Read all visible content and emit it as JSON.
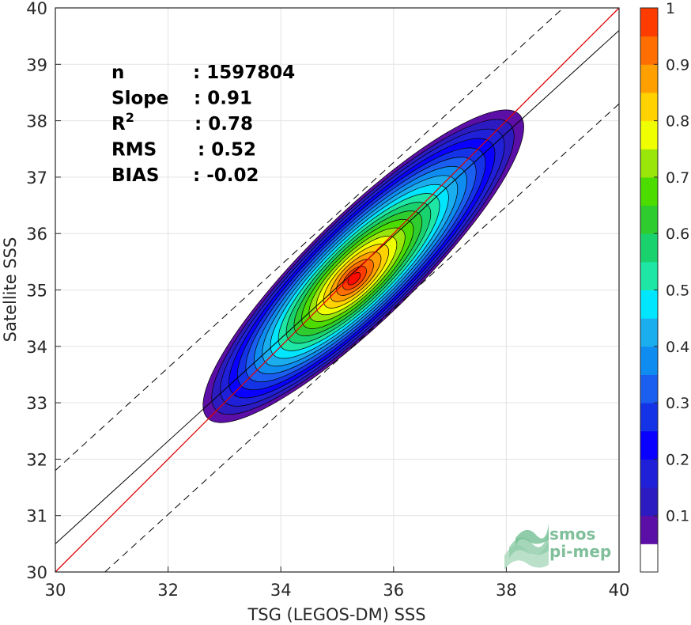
{
  "chart_data": {
    "type": "heatmap",
    "subtype": "2D density contour scatter comparison",
    "xlabel": "TSG (LEGOS-DM) SSS",
    "ylabel": "Satellite SSS",
    "xlim": [
      30,
      40
    ],
    "ylim": [
      30,
      40
    ],
    "xticks": [
      30,
      32,
      34,
      36,
      38,
      40
    ],
    "yticks": [
      30,
      31,
      32,
      33,
      34,
      35,
      36,
      37,
      38,
      39,
      40
    ],
    "grid": true,
    "stats": [
      {
        "key": "n",
        "value": ": 1597804"
      },
      {
        "key": "Slope",
        "value": ": 0.91"
      },
      {
        "key": "R",
        "sup": "2",
        "value": ": 0.78"
      },
      {
        "key": "RMS",
        "value": ": 0.52"
      },
      {
        "key": "BIAS",
        "value": ": -0.02"
      }
    ],
    "lines": {
      "identity": {
        "color": "#e00000",
        "points": [
          [
            30,
            30
          ],
          [
            40,
            40
          ]
        ]
      },
      "regression": {
        "color": "#000000",
        "slope": 0.91,
        "intercept": 3.2
      },
      "bounds": {
        "color": "#000000",
        "style": "dashed",
        "offset": 1.3
      }
    },
    "density_peak": {
      "x": 35.3,
      "y": 35.2
    },
    "colorbar": {
      "min": 0,
      "max": 1,
      "ticks": [
        0.1,
        0.2,
        0.3,
        0.4,
        0.5,
        0.6,
        0.7,
        0.8,
        0.9,
        1
      ],
      "tick_labels": [
        "0.1",
        "0.2",
        "0.3",
        "0.4",
        "0.5",
        "0.6",
        "0.7",
        "0.8",
        "0.9",
        "1"
      ],
      "levels": [
        0,
        0.05,
        0.1,
        0.15,
        0.2,
        0.25,
        0.3,
        0.35,
        0.4,
        0.45,
        0.5,
        0.55,
        0.6,
        0.65,
        0.7,
        0.75,
        0.8,
        0.85,
        0.9,
        0.95,
        1
      ],
      "colors": [
        "#ffffff",
        "#5b0fa6",
        "#2c1bc0",
        "#1f20d8",
        "#0a00ff",
        "#1432e6",
        "#1a5ff0",
        "#0f8cf0",
        "#1aaeef",
        "#00e6ff",
        "#1ee6a5",
        "#19d26e",
        "#2ecc2e",
        "#4cdc00",
        "#9be60a",
        "#f0ff00",
        "#ffd200",
        "#ffa000",
        "#ff6e00",
        "#ff3c00",
        "#ff0a00",
        "#c80000",
        "#8c0000"
      ]
    }
  },
  "logo": {
    "line1": "smos",
    "line2": "pi-mep"
  }
}
